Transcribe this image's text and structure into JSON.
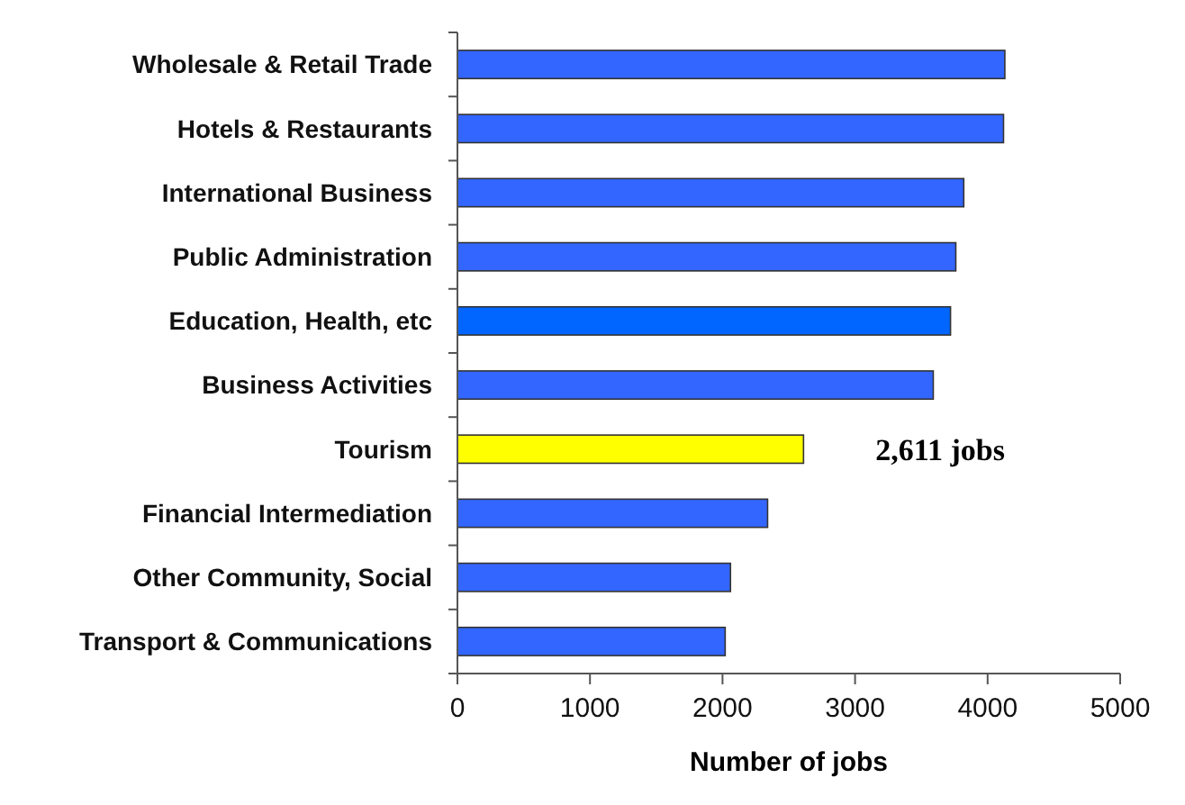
{
  "chart_data": {
    "type": "bar",
    "orientation": "horizontal",
    "xlabel": "Number of jobs",
    "categories": [
      "Wholesale & Retail Trade",
      "Hotels & Restaurants",
      "International Business",
      "Public Administration",
      "Education, Health, etc",
      "Business Activities",
      "Tourism",
      "Financial Intermediation",
      "Other Community, Social",
      "Transport & Communications"
    ],
    "values": [
      4130,
      4120,
      3820,
      3760,
      3720,
      3590,
      2611,
      2340,
      2060,
      2020
    ],
    "colors": [
      "#3366ff",
      "#3366ff",
      "#3366ff",
      "#3366ff",
      "#0066ff",
      "#3366ff",
      "#ffff00",
      "#3366ff",
      "#3366ff",
      "#3366ff"
    ],
    "xlim": [
      0,
      5000
    ],
    "xticks": [
      0,
      1000,
      2000,
      3000,
      4000,
      5000
    ],
    "annotations": [
      {
        "text": "2,611 jobs",
        "x": 2611,
        "y": "Tourism"
      }
    ]
  }
}
